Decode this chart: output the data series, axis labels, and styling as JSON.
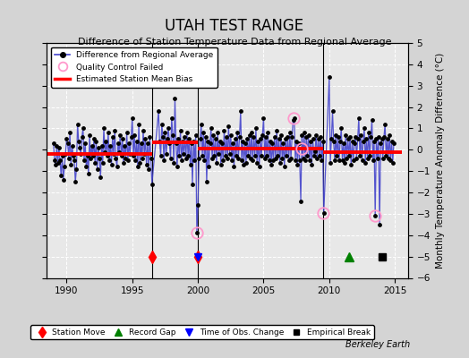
{
  "title": "UTAH TEST RANGE",
  "subtitle": "Difference of Station Temperature Data from Regional Average",
  "ylabel": "Monthly Temperature Anomaly Difference (°C)",
  "xlim": [
    1988.5,
    2016.0
  ],
  "ylim": [
    -6,
    5
  ],
  "yticks": [
    -6,
    -5,
    -4,
    -3,
    -2,
    -1,
    0,
    1,
    2,
    3,
    4,
    5
  ],
  "xticks": [
    1990,
    1995,
    2000,
    2005,
    2010,
    2015
  ],
  "bg_color": "#d4d4d4",
  "plot_bg_color": "#e8e8e8",
  "grid_color": "#cccccc",
  "line_color": "#4444cc",
  "bias_color": "red",
  "watermark": "Berkeley Earth",
  "segments": [
    {
      "start": 1988.5,
      "end": 1996.5,
      "bias": -0.2
    },
    {
      "start": 1996.5,
      "end": 2000.0,
      "bias": 0.35
    },
    {
      "start": 2000.0,
      "end": 2009.5,
      "bias": 0.05
    },
    {
      "start": 2009.5,
      "end": 2015.5,
      "bias": -0.1
    }
  ],
  "station_moves": [
    1996.5,
    2000.0
  ],
  "record_gap": [
    2011.5
  ],
  "time_of_obs_change": [
    2000.0
  ],
  "empirical_break": [
    2014.0
  ],
  "qc_failed_x": [
    1999.92,
    2007.25,
    2007.92,
    2009.5,
    2013.5
  ],
  "qc_failed_y": [
    -3.9,
    1.5,
    0.05,
    -2.95,
    -3.1
  ],
  "monthly_data": [
    [
      1989.0,
      0.3
    ],
    [
      1989.083,
      -0.5
    ],
    [
      1989.167,
      -0.7
    ],
    [
      1989.25,
      0.2
    ],
    [
      1989.333,
      -0.6
    ],
    [
      1989.417,
      0.1
    ],
    [
      1989.5,
      -0.5
    ],
    [
      1989.583,
      -1.2
    ],
    [
      1989.667,
      -0.3
    ],
    [
      1989.75,
      -1.4
    ],
    [
      1989.833,
      -0.8
    ],
    [
      1989.917,
      -0.2
    ],
    [
      1990.0,
      0.5
    ],
    [
      1990.083,
      0.3
    ],
    [
      1990.167,
      -0.4
    ],
    [
      1990.25,
      0.8
    ],
    [
      1990.333,
      -0.7
    ],
    [
      1990.417,
      0.2
    ],
    [
      1990.5,
      -0.3
    ],
    [
      1990.583,
      -0.5
    ],
    [
      1990.667,
      -1.5
    ],
    [
      1990.75,
      -0.9
    ],
    [
      1990.833,
      1.2
    ],
    [
      1990.917,
      0.4
    ],
    [
      1991.0,
      0.1
    ],
    [
      1991.083,
      -0.2
    ],
    [
      1991.167,
      0.6
    ],
    [
      1991.25,
      1.0
    ],
    [
      1991.333,
      -0.5
    ],
    [
      1991.417,
      0.3
    ],
    [
      1991.5,
      -0.8
    ],
    [
      1991.583,
      -0.3
    ],
    [
      1991.667,
      -1.1
    ],
    [
      1991.75,
      0.7
    ],
    [
      1991.833,
      -0.4
    ],
    [
      1991.917,
      0.2
    ],
    [
      1992.0,
      -0.3
    ],
    [
      1992.083,
      0.5
    ],
    [
      1992.167,
      -0.6
    ],
    [
      1992.25,
      0.4
    ],
    [
      1992.333,
      -0.9
    ],
    [
      1992.417,
      0.1
    ],
    [
      1992.5,
      -0.4
    ],
    [
      1992.583,
      -1.3
    ],
    [
      1992.667,
      0.2
    ],
    [
      1992.75,
      -0.6
    ],
    [
      1992.833,
      1.0
    ],
    [
      1992.917,
      -0.1
    ],
    [
      1993.0,
      0.4
    ],
    [
      1993.083,
      -0.3
    ],
    [
      1993.167,
      0.8
    ],
    [
      1993.25,
      -0.5
    ],
    [
      1993.333,
      0.2
    ],
    [
      1993.417,
      -0.7
    ],
    [
      1993.5,
      0.6
    ],
    [
      1993.583,
      -0.2
    ],
    [
      1993.667,
      0.9
    ],
    [
      1993.75,
      -0.4
    ],
    [
      1993.833,
      -0.8
    ],
    [
      1993.917,
      0.3
    ],
    [
      1994.0,
      -0.1
    ],
    [
      1994.083,
      0.7
    ],
    [
      1994.167,
      -0.3
    ],
    [
      1994.25,
      0.5
    ],
    [
      1994.333,
      -0.6
    ],
    [
      1994.417,
      0.2
    ],
    [
      1994.5,
      -0.4
    ],
    [
      1994.583,
      0.8
    ],
    [
      1994.667,
      -0.5
    ],
    [
      1994.75,
      0.3
    ],
    [
      1994.833,
      -0.2
    ],
    [
      1994.917,
      0.6
    ],
    [
      1995.0,
      1.5
    ],
    [
      1995.083,
      -0.3
    ],
    [
      1995.167,
      0.7
    ],
    [
      1995.25,
      -0.5
    ],
    [
      1995.333,
      0.4
    ],
    [
      1995.417,
      -0.8
    ],
    [
      1995.5,
      1.2
    ],
    [
      1995.583,
      -0.6
    ],
    [
      1995.667,
      0.3
    ],
    [
      1995.75,
      -0.4
    ],
    [
      1995.833,
      0.9
    ],
    [
      1995.917,
      -0.2
    ],
    [
      1996.0,
      0.5
    ],
    [
      1996.083,
      -0.7
    ],
    [
      1996.167,
      0.3
    ],
    [
      1996.25,
      -0.9
    ],
    [
      1996.333,
      0.6
    ],
    [
      1996.417,
      -0.4
    ],
    [
      1996.5,
      -1.6
    ],
    [
      1997.0,
      1.8
    ],
    [
      1997.083,
      0.4
    ],
    [
      1997.167,
      -0.3
    ],
    [
      1997.25,
      1.2
    ],
    [
      1997.333,
      0.6
    ],
    [
      1997.417,
      -0.5
    ],
    [
      1997.5,
      0.8
    ],
    [
      1997.583,
      -0.2
    ],
    [
      1997.667,
      0.5
    ],
    [
      1997.75,
      1.0
    ],
    [
      1997.833,
      0.3
    ],
    [
      1997.917,
      -0.4
    ],
    [
      1998.0,
      1.5
    ],
    [
      1998.083,
      0.7
    ],
    [
      1998.167,
      -0.6
    ],
    [
      1998.25,
      2.4
    ],
    [
      1998.333,
      0.3
    ],
    [
      1998.417,
      -0.8
    ],
    [
      1998.5,
      0.5
    ],
    [
      1998.583,
      -0.3
    ],
    [
      1998.667,
      0.9
    ],
    [
      1998.75,
      -0.5
    ],
    [
      1998.833,
      0.4
    ],
    [
      1998.917,
      -0.2
    ],
    [
      1999.0,
      0.6
    ],
    [
      1999.083,
      -0.4
    ],
    [
      1999.167,
      0.8
    ],
    [
      1999.25,
      -0.3
    ],
    [
      1999.333,
      0.5
    ],
    [
      1999.417,
      -0.7
    ],
    [
      1999.5,
      0.3
    ],
    [
      1999.583,
      -1.6
    ],
    [
      1999.667,
      0.4
    ],
    [
      1999.75,
      -0.5
    ],
    [
      1999.833,
      0.7
    ],
    [
      1999.917,
      -3.9
    ],
    [
      2000.0,
      -2.6
    ],
    [
      2000.083,
      -0.4
    ],
    [
      2000.167,
      0.5
    ],
    [
      2000.25,
      1.2
    ],
    [
      2000.333,
      -0.3
    ],
    [
      2000.417,
      0.8
    ],
    [
      2000.5,
      -0.5
    ],
    [
      2000.583,
      0.6
    ],
    [
      2000.667,
      -1.5
    ],
    [
      2000.75,
      0.4
    ],
    [
      2000.833,
      -0.8
    ],
    [
      2000.917,
      0.3
    ],
    [
      2001.0,
      1.0
    ],
    [
      2001.083,
      -0.4
    ],
    [
      2001.167,
      0.7
    ],
    [
      2001.25,
      -0.3
    ],
    [
      2001.333,
      0.5
    ],
    [
      2001.417,
      -0.6
    ],
    [
      2001.5,
      0.8
    ],
    [
      2001.583,
      -0.2
    ],
    [
      2001.667,
      0.4
    ],
    [
      2001.75,
      -0.7
    ],
    [
      2001.833,
      0.3
    ],
    [
      2001.917,
      -0.5
    ],
    [
      2002.0,
      0.9
    ],
    [
      2002.083,
      -0.3
    ],
    [
      2002.167,
      0.6
    ],
    [
      2002.25,
      -0.4
    ],
    [
      2002.333,
      1.1
    ],
    [
      2002.417,
      -0.2
    ],
    [
      2002.5,
      0.7
    ],
    [
      2002.583,
      -0.5
    ],
    [
      2002.667,
      0.3
    ],
    [
      2002.75,
      -0.8
    ],
    [
      2002.833,
      0.5
    ],
    [
      2002.917,
      -0.3
    ],
    [
      2003.0,
      0.8
    ],
    [
      2003.083,
      -0.4
    ],
    [
      2003.167,
      0.6
    ],
    [
      2003.25,
      1.8
    ],
    [
      2003.333,
      -0.5
    ],
    [
      2003.417,
      0.4
    ],
    [
      2003.5,
      -0.7
    ],
    [
      2003.583,
      0.3
    ],
    [
      2003.667,
      -0.6
    ],
    [
      2003.75,
      0.5
    ],
    [
      2003.833,
      -0.3
    ],
    [
      2003.917,
      0.7
    ],
    [
      2004.0,
      -0.4
    ],
    [
      2004.083,
      0.8
    ],
    [
      2004.167,
      -0.5
    ],
    [
      2004.25,
      0.6
    ],
    [
      2004.333,
      -0.3
    ],
    [
      2004.417,
      1.0
    ],
    [
      2004.5,
      -0.6
    ],
    [
      2004.583,
      0.4
    ],
    [
      2004.667,
      -0.8
    ],
    [
      2004.75,
      0.5
    ],
    [
      2004.833,
      -0.3
    ],
    [
      2004.917,
      0.7
    ],
    [
      2005.0,
      1.5
    ],
    [
      2005.083,
      -0.4
    ],
    [
      2005.167,
      0.6
    ],
    [
      2005.25,
      -0.3
    ],
    [
      2005.333,
      0.8
    ],
    [
      2005.417,
      -0.5
    ],
    [
      2005.5,
      0.4
    ],
    [
      2005.583,
      -0.7
    ],
    [
      2005.667,
      0.3
    ],
    [
      2005.75,
      -0.5
    ],
    [
      2005.833,
      0.6
    ],
    [
      2005.917,
      -0.4
    ],
    [
      2006.0,
      0.9
    ],
    [
      2006.083,
      -0.3
    ],
    [
      2006.167,
      0.5
    ],
    [
      2006.25,
      -0.6
    ],
    [
      2006.333,
      0.7
    ],
    [
      2006.417,
      -0.4
    ],
    [
      2006.5,
      0.3
    ],
    [
      2006.583,
      -0.8
    ],
    [
      2006.667,
      0.5
    ],
    [
      2006.75,
      -0.3
    ],
    [
      2006.833,
      0.6
    ],
    [
      2006.917,
      -0.5
    ],
    [
      2007.0,
      0.8
    ],
    [
      2007.083,
      -0.4
    ],
    [
      2007.167,
      0.6
    ],
    [
      2007.25,
      1.4
    ],
    [
      2007.333,
      1.5
    ],
    [
      2007.417,
      -0.5
    ],
    [
      2007.5,
      0.4
    ],
    [
      2007.583,
      -0.7
    ],
    [
      2007.667,
      0.3
    ],
    [
      2007.75,
      -0.5
    ],
    [
      2007.833,
      -2.4
    ],
    [
      2007.917,
      0.7
    ],
    [
      2008.0,
      -0.4
    ],
    [
      2008.083,
      0.8
    ],
    [
      2008.167,
      -0.5
    ],
    [
      2008.25,
      0.6
    ],
    [
      2008.333,
      -0.3
    ],
    [
      2008.417,
      0.7
    ],
    [
      2008.5,
      -0.5
    ],
    [
      2008.583,
      0.4
    ],
    [
      2008.667,
      -0.7
    ],
    [
      2008.75,
      0.5
    ],
    [
      2008.833,
      -0.3
    ],
    [
      2008.917,
      -0.05
    ],
    [
      2009.0,
      0.7
    ],
    [
      2009.083,
      -0.4
    ],
    [
      2009.167,
      0.5
    ],
    [
      2009.25,
      -0.3
    ],
    [
      2009.333,
      0.6
    ],
    [
      2009.417,
      -0.5
    ],
    [
      2009.5,
      0.4
    ],
    [
      2009.583,
      -2.95
    ],
    [
      2010.0,
      3.4
    ],
    [
      2010.083,
      -0.6
    ],
    [
      2010.167,
      0.5
    ],
    [
      2010.25,
      1.8
    ],
    [
      2010.333,
      0.4
    ],
    [
      2010.417,
      -0.5
    ],
    [
      2010.5,
      0.7
    ],
    [
      2010.583,
      -0.3
    ],
    [
      2010.667,
      0.6
    ],
    [
      2010.75,
      -0.5
    ],
    [
      2010.833,
      0.4
    ],
    [
      2010.917,
      1.0
    ],
    [
      2011.0,
      -0.5
    ],
    [
      2011.083,
      0.3
    ],
    [
      2011.167,
      -0.6
    ],
    [
      2011.25,
      0.7
    ],
    [
      2011.333,
      -0.4
    ],
    [
      2011.417,
      0.5
    ],
    [
      2011.5,
      -0.3
    ],
    [
      2011.583,
      0.6
    ],
    [
      2011.667,
      -0.7
    ],
    [
      2011.75,
      0.4
    ],
    [
      2011.833,
      -0.5
    ],
    [
      2011.917,
      0.3
    ],
    [
      2012.0,
      0.6
    ],
    [
      2012.083,
      -0.4
    ],
    [
      2012.167,
      0.5
    ],
    [
      2012.25,
      1.5
    ],
    [
      2012.333,
      -0.3
    ],
    [
      2012.417,
      0.7
    ],
    [
      2012.5,
      -0.5
    ],
    [
      2012.583,
      0.4
    ],
    [
      2012.667,
      1.0
    ],
    [
      2012.75,
      -0.6
    ],
    [
      2012.833,
      0.5
    ],
    [
      2012.917,
      -0.4
    ],
    [
      2013.0,
      0.8
    ],
    [
      2013.083,
      -0.3
    ],
    [
      2013.167,
      0.6
    ],
    [
      2013.25,
      1.4
    ],
    [
      2013.333,
      -0.5
    ],
    [
      2013.417,
      0.4
    ],
    [
      2013.5,
      -3.1
    ],
    [
      2013.583,
      0.5
    ],
    [
      2013.667,
      -0.4
    ],
    [
      2013.75,
      0.6
    ],
    [
      2013.833,
      -3.5
    ],
    [
      2013.917,
      0.3
    ],
    [
      2014.0,
      0.5
    ],
    [
      2014.083,
      -0.4
    ],
    [
      2014.167,
      0.6
    ],
    [
      2014.25,
      1.2
    ],
    [
      2014.333,
      -0.3
    ],
    [
      2014.417,
      0.5
    ],
    [
      2014.5,
      -0.4
    ],
    [
      2014.583,
      0.7
    ],
    [
      2014.667,
      -0.5
    ],
    [
      2014.75,
      0.4
    ],
    [
      2014.833,
      -0.6
    ],
    [
      2014.917,
      0.3
    ]
  ]
}
